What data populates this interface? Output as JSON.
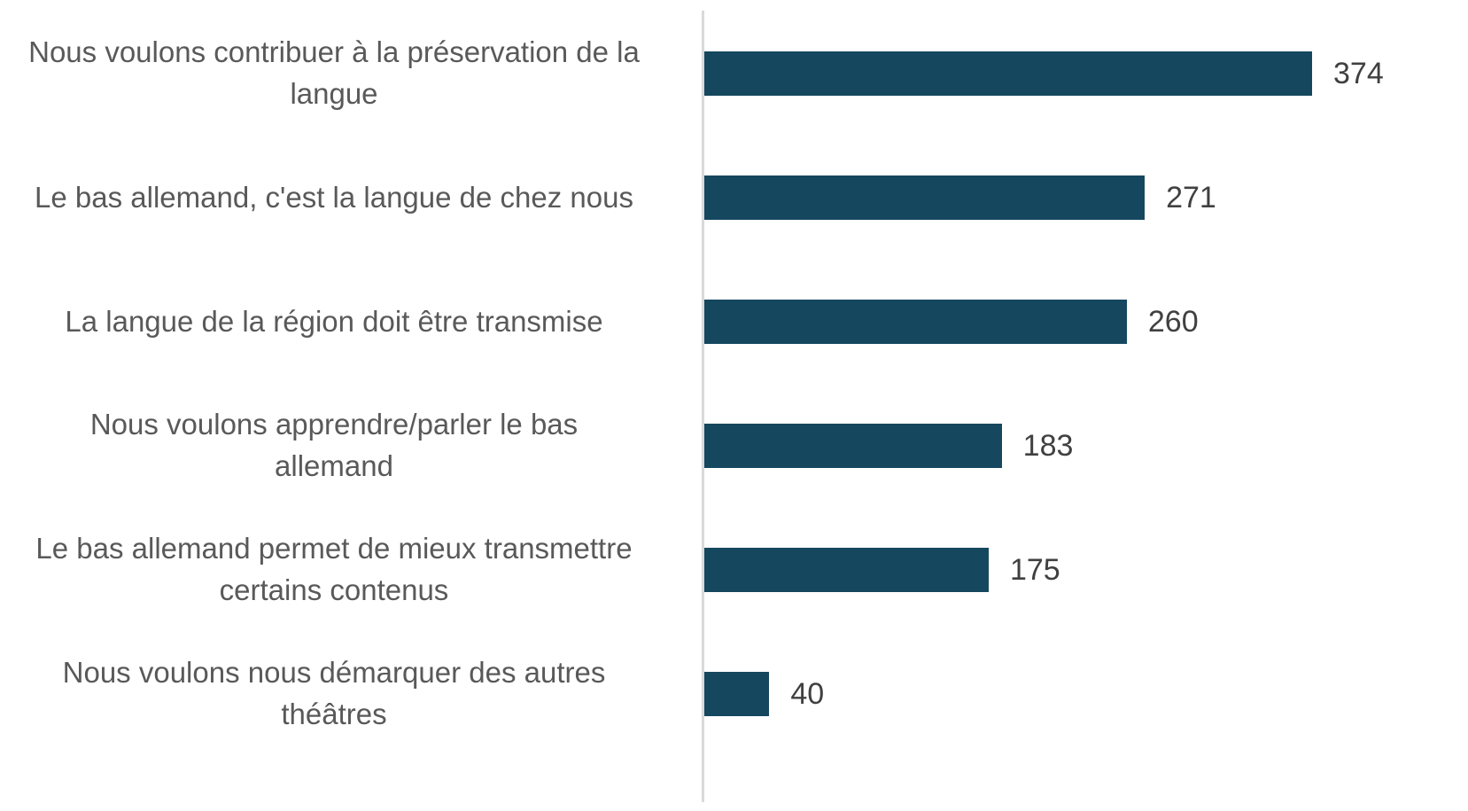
{
  "chart_data": {
    "type": "bar",
    "orientation": "horizontal",
    "title": "",
    "xlabel": "",
    "ylabel": "",
    "categories": [
      "Nous voulons contribuer à la préservation de la langue",
      "Le bas allemand, c'est la langue de chez nous",
      "La langue de la région doit être transmise",
      "Nous voulons apprendre/parler le bas allemand",
      "Le bas allemand permet de mieux transmettre certains contenus",
      "Nous voulons nous démarquer des autres théâtres"
    ],
    "values": [
      374,
      271,
      260,
      183,
      175,
      40
    ],
    "xlim": [
      0,
      374
    ],
    "grid": false,
    "legend": null,
    "data_labels": true,
    "bar_color": "#15475f",
    "axis_color": "#d9d9d9",
    "label_color": "#595959",
    "value_label_color": "#404040"
  },
  "rows": [
    {
      "label_lines": [
        "Nous voulons contribuer à la préservation de la",
        "langue"
      ],
      "value": 374,
      "value_text": "374"
    },
    {
      "label_lines": [
        "Le bas allemand, c'est la langue de chez nous"
      ],
      "value": 271,
      "value_text": "271"
    },
    {
      "label_lines": [
        "La langue de la région doit être transmise"
      ],
      "value": 260,
      "value_text": "260"
    },
    {
      "label_lines": [
        "Nous voulons apprendre/parler le bas",
        "allemand"
      ],
      "value": 183,
      "value_text": "183"
    },
    {
      "label_lines": [
        "Le bas allemand permet de mieux transmettre",
        "certains contenus"
      ],
      "value": 175,
      "value_text": "175"
    },
    {
      "label_lines": [
        "Nous voulons nous démarquer des autres",
        "théâtres"
      ],
      "value": 40,
      "value_text": "40"
    }
  ]
}
